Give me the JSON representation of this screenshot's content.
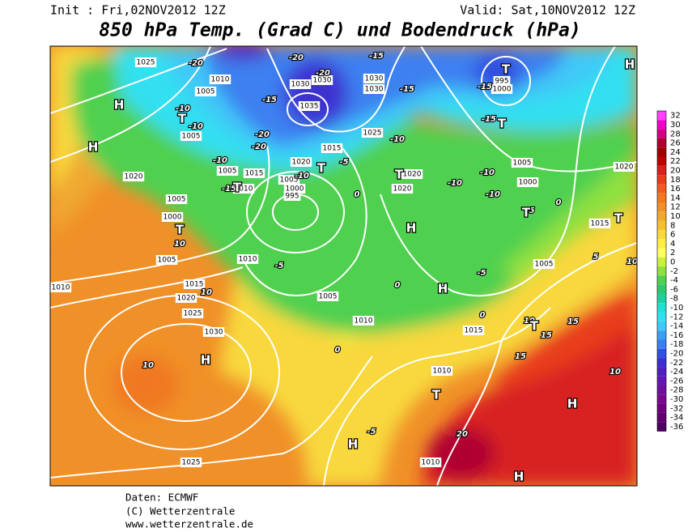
{
  "header": {
    "init": "Init : Fri,02NOV2012 12Z",
    "valid": "Valid: Sat,10NOV2012 12Z",
    "title": "850 hPa Temp. (Grad C) und Bodendruck (hPa)"
  },
  "colorbar": {
    "ticks": [
      32,
      30,
      28,
      26,
      24,
      22,
      20,
      18,
      16,
      14,
      12,
      10,
      8,
      6,
      4,
      2,
      0,
      -2,
      -4,
      -6,
      -8,
      -10,
      -12,
      -14,
      -16,
      -18,
      -20,
      -22,
      -24,
      -26,
      -28,
      -30,
      -32,
      -34,
      -36
    ],
    "colors": [
      "#ff40ff",
      "#f000c8",
      "#d40080",
      "#b00030",
      "#a00000",
      "#c00000",
      "#d82020",
      "#e83c1c",
      "#f05a1e",
      "#f07820",
      "#f09028",
      "#f0a830",
      "#f5c030",
      "#f8d83c",
      "#ffee40",
      "#ffff60",
      "#c8f03c",
      "#90e040",
      "#50d050",
      "#30c870",
      "#20d0a0",
      "#20e0d0",
      "#30e0f0",
      "#40c8f8",
      "#3ca0f0",
      "#3c80f0",
      "#3050e0",
      "#3c30d0",
      "#5020c0",
      "#6418b0",
      "#7010a0",
      "#7c0890",
      "#700080",
      "#600070",
      "#500060"
    ]
  },
  "map": {
    "pressure_labels": [
      "1025",
      "1010",
      "1005",
      "1005",
      "1020",
      "1005",
      "1000",
      "1005",
      "1010",
      "1015",
      "1020",
      "1025",
      "1030",
      "1010",
      "1005",
      "1015",
      "1010",
      "1005",
      "1020",
      "1000",
      "995",
      "1030",
      "1035",
      "1030",
      "1030",
      "1025",
      "1015",
      "1020",
      "1020",
      "1005",
      "1000",
      "1015",
      "1005",
      "1020",
      "1005",
      "1010",
      "1015",
      "1010",
      "1010",
      "1025",
      "995",
      "1000",
      "1030"
    ],
    "temperature_labels": [
      "-20",
      "-20",
      "-20",
      "-15",
      "-15",
      "-10",
      "-10",
      "-20",
      "-20",
      "-10",
      "-15",
      "-5",
      "-10",
      "-10",
      "-15",
      "-15",
      "-15",
      "-10",
      "-10",
      "-10",
      "-5",
      "0",
      "0",
      "-5",
      "0",
      "-5",
      "0",
      "5",
      "10",
      "10",
      "10",
      "10",
      "0",
      "10",
      "15",
      "15",
      "15",
      "10",
      "-5",
      "20"
    ],
    "centers": [
      "H",
      "H",
      "H",
      "T",
      "T",
      "T",
      "T",
      "T",
      "T",
      "T",
      "T",
      "H",
      "H",
      "T",
      "T",
      "H",
      "T",
      "H",
      "H",
      "H"
    ]
  },
  "footer": {
    "lines": [
      "Daten: ECMWF",
      "(C) Wetterzentrale",
      "www.wetterzentrale.de"
    ]
  }
}
